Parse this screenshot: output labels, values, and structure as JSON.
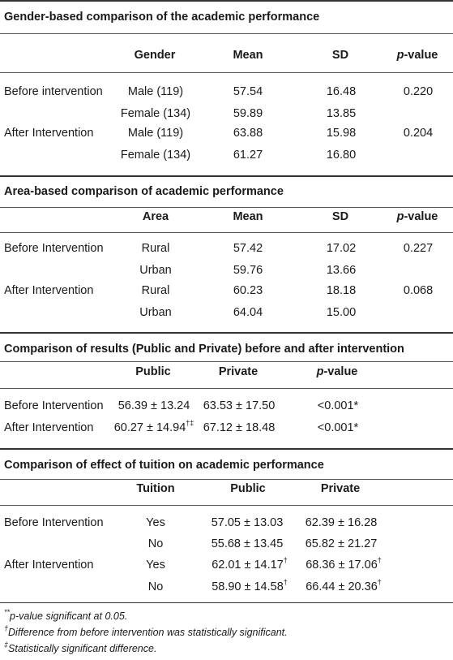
{
  "section1": {
    "title": "Gender-based comparison of the academic performance",
    "headers": {
      "gender": "Gender",
      "mean": "Mean",
      "sd": "SD",
      "p": "p",
      "p_suffix": "-value"
    },
    "rows": [
      {
        "group": "Before intervention",
        "gender": "Male (119)",
        "mean": "57.54",
        "sd": "16.48",
        "p": "0.220"
      },
      {
        "group": "",
        "gender": "Female (134)",
        "mean": "59.89",
        "sd": "13.85",
        "p": ""
      },
      {
        "group": "After Intervention",
        "gender": "Male (119)",
        "mean": "63.88",
        "sd": "15.98",
        "p": "0.204"
      },
      {
        "group": "",
        "gender": "Female (134)",
        "mean": "61.27",
        "sd": "16.80",
        "p": ""
      }
    ]
  },
  "section2": {
    "title": "Area-based comparison of academic performance",
    "headers": {
      "area": "Area",
      "mean": "Mean",
      "sd": "SD",
      "p": "p",
      "p_suffix": "-value"
    },
    "rows": [
      {
        "group": "Before Intervention",
        "area": "Rural",
        "mean": "57.42",
        "sd": "17.02",
        "p": "0.227"
      },
      {
        "group": "",
        "area": "Urban",
        "mean": "59.76",
        "sd": "13.66",
        "p": ""
      },
      {
        "group": "After Intervention",
        "area": "Rural",
        "mean": "60.23",
        "sd": "18.18",
        "p": "0.068"
      },
      {
        "group": "",
        "area": "Urban",
        "mean": "64.04",
        "sd": "15.00",
        "p": ""
      }
    ]
  },
  "section3": {
    "title": "Comparison of results (Public and Private) before and after intervention",
    "headers": {
      "public": "Public",
      "private": "Private",
      "p": "p",
      "p_suffix": "-value"
    },
    "rows": [
      {
        "group": "Before Intervention",
        "public": "56.39 ± 13.24",
        "public_sup": "",
        "private": "63.53 ± 17.50",
        "p": "<0.001*"
      },
      {
        "group": "After Intervention",
        "public": "60.27 ± 14.94",
        "public_sup": "†‡",
        "private": "67.12 ± 18.48",
        "p": "<0.001*"
      }
    ]
  },
  "section4": {
    "title": "Comparison of effect of tuition on academic performance",
    "headers": {
      "tuition": "Tuition",
      "public": "Public",
      "private": "Private"
    },
    "rows": [
      {
        "group": "Before Intervention",
        "tuition": "Yes",
        "public": "57.05 ± 13.03",
        "public_sup": "",
        "private": "62.39 ± 16.28",
        "private_sup": ""
      },
      {
        "group": "",
        "tuition": "No",
        "public": "55.68 ± 13.45",
        "public_sup": "",
        "private": "65.82 ± 21.27",
        "private_sup": ""
      },
      {
        "group": "After Intervention",
        "tuition": "Yes",
        "public": "62.01 ± 14.17",
        "public_sup": "†",
        "private": "68.36 ± 17.06",
        "private_sup": "†"
      },
      {
        "group": "",
        "tuition": "No",
        "public": "58.90 ± 14.58",
        "public_sup": "†",
        "private": "66.44 ± 20.36",
        "private_sup": "†"
      }
    ]
  },
  "footnotes": [
    {
      "mark": "**",
      "text": "p-value significant at 0.05."
    },
    {
      "mark": "†",
      "text": "Difference from before intervention was statistically significant."
    },
    {
      "mark": "‡",
      "text": "Statistically significant difference."
    }
  ]
}
